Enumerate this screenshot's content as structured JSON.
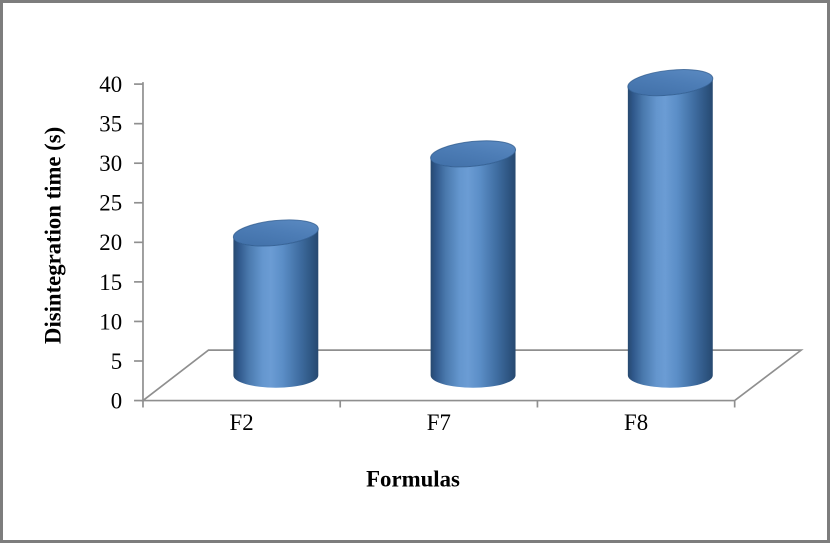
{
  "chart_data": {
    "type": "bar",
    "style": "3d-cylinder",
    "title": "",
    "categories": [
      "F2",
      "F7",
      "F8"
    ],
    "values": [
      18,
      28,
      37
    ],
    "xlabel": "Formulas",
    "ylabel": "Disintegration time (s)",
    "ylim": [
      0,
      40
    ],
    "ytick_interval": 5,
    "yticks": [
      0,
      5,
      10,
      15,
      20,
      25,
      30,
      35,
      40
    ],
    "grid": false,
    "legend": "none",
    "colors": {
      "bar_base": "#4f81bd",
      "bar_edge_dark": "#27496f",
      "bar_highlight": "#6b9cd4",
      "bar_top_light": "#5e8dc4",
      "bar_top_dark": "#3f6ea6",
      "axis_line": "#8f8f8f",
      "text": "#000000",
      "frame_border": "#7d7d7d",
      "background": "#ffffff"
    }
  }
}
